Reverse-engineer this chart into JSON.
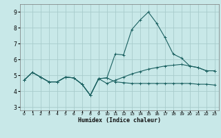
{
  "xlabel": "Humidex (Indice chaleur)",
  "xlim": [
    -0.5,
    23.5
  ],
  "ylim": [
    2.8,
    9.5
  ],
  "yticks": [
    3,
    4,
    5,
    6,
    7,
    8,
    9
  ],
  "xticks": [
    0,
    1,
    2,
    3,
    4,
    5,
    6,
    7,
    8,
    9,
    10,
    11,
    12,
    13,
    14,
    15,
    16,
    17,
    18,
    19,
    20,
    21,
    22,
    23
  ],
  "bg_color": "#c8e8e8",
  "grid_color": "#a8cccc",
  "line_color": "#1a6060",
  "line1_x": [
    0,
    1,
    2,
    3,
    4,
    5,
    6,
    7,
    8,
    9,
    10,
    11,
    12,
    13,
    14,
    15,
    16,
    17,
    18,
    19,
    20,
    21,
    22,
    23
  ],
  "line1_y": [
    4.7,
    5.2,
    4.9,
    4.6,
    4.6,
    4.9,
    4.85,
    4.45,
    3.75,
    4.8,
    4.85,
    4.6,
    4.55,
    4.5,
    4.5,
    4.5,
    4.5,
    4.5,
    4.5,
    4.5,
    4.5,
    4.45,
    4.45,
    4.4
  ],
  "line2_x": [
    0,
    1,
    2,
    3,
    4,
    5,
    6,
    7,
    8,
    9,
    10,
    11,
    12,
    13,
    14,
    15,
    16,
    17,
    18,
    19,
    20,
    21,
    22,
    23
  ],
  "line2_y": [
    4.7,
    5.2,
    4.9,
    4.6,
    4.6,
    4.9,
    4.85,
    4.45,
    3.75,
    4.8,
    4.85,
    6.35,
    6.3,
    7.9,
    8.5,
    9.0,
    8.3,
    7.4,
    6.35,
    6.1,
    5.6,
    5.5,
    5.3,
    5.3
  ],
  "line3_x": [
    0,
    1,
    2,
    3,
    4,
    5,
    6,
    7,
    8,
    9,
    10,
    11,
    12,
    13,
    14,
    15,
    16,
    17,
    18,
    19,
    20,
    21,
    22,
    23
  ],
  "line3_y": [
    4.7,
    5.2,
    4.9,
    4.6,
    4.6,
    4.9,
    4.85,
    4.45,
    3.75,
    4.8,
    4.5,
    4.7,
    4.9,
    5.1,
    5.25,
    5.4,
    5.5,
    5.6,
    5.65,
    5.7,
    5.6,
    5.5,
    5.3,
    5.3
  ]
}
